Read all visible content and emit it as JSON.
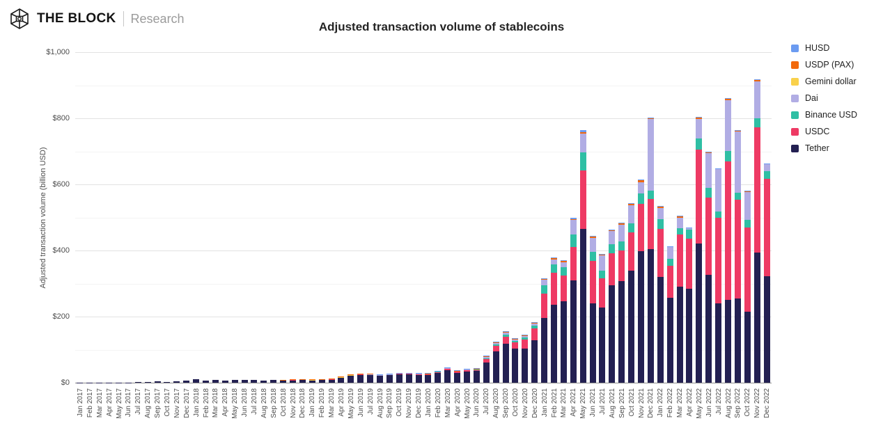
{
  "header": {
    "brand": "THE BLOCK",
    "sub": "Research"
  },
  "chart_data": {
    "type": "bar",
    "stacked": true,
    "title": "Adjusted transaction volume of stablecoins",
    "xlabel": "",
    "ylabel": "Adjusted transaction volume (billion USD)",
    "ylim": [
      0,
      1000
    ],
    "ytick_step": 200,
    "yminor_step": 100,
    "ytick_labels": [
      "$0",
      "$200",
      "$400",
      "$600",
      "$800",
      "$1,000"
    ],
    "grid": true,
    "legend_position": "right",
    "legend_order_top_to_bottom": [
      "HUSD",
      "USDP (PAX)",
      "Gemini dollar",
      "Dai",
      "Binance USD",
      "USDC",
      "Tether"
    ],
    "categories": [
      "Jan 2017",
      "Feb 2017",
      "Mar 2017",
      "Apr 2017",
      "May 2017",
      "Jun 2017",
      "Jul 2017",
      "Aug 2017",
      "Sep 2017",
      "Oct 2017",
      "Nov 2017",
      "Dec 2017",
      "Jan 2018",
      "Feb 2018",
      "Mar 2018",
      "Apr 2018",
      "May 2018",
      "Jun 2018",
      "Jul 2018",
      "Aug 2018",
      "Sep 2018",
      "Oct 2018",
      "Nov 2018",
      "Dec 2018",
      "Jan 2019",
      "Feb 2019",
      "Mar 2019",
      "Apr 2019",
      "May 2019",
      "Jun 2019",
      "Jul 2019",
      "Aug 2019",
      "Sep 2019",
      "Oct 2019",
      "Nov 2019",
      "Dec 2019",
      "Jan 2020",
      "Feb 2020",
      "Mar 2020",
      "Apr 2020",
      "May 2020",
      "Jun 2020",
      "Jul 2020",
      "Aug 2020",
      "Sep 2020",
      "Oct 2020",
      "Nov 2020",
      "Dec 2020",
      "Jan 2021",
      "Feb 2021",
      "Mar 2021",
      "Apr 2021",
      "May 2021",
      "Jun 2021",
      "Jul 2021",
      "Aug 2021",
      "Sep 2021",
      "Oct 2021",
      "Nov 2021",
      "Dec 2021",
      "Jan 2022",
      "Feb 2022",
      "Mar 2022",
      "Apr 2022",
      "May 2022",
      "Jun 2022",
      "Jul 2022",
      "Aug 2022",
      "Sep 2022",
      "Oct 2022",
      "Nov 2022",
      "Dec 2022"
    ],
    "series": [
      {
        "name": "Tether",
        "color": "#232052",
        "values": [
          0.4,
          0.4,
          0.5,
          0.6,
          0.9,
          1,
          1.2,
          2.2,
          3.8,
          2.4,
          3.6,
          6.5,
          10.5,
          7,
          7.5,
          7,
          8.5,
          8,
          7.5,
          7,
          8,
          8.5,
          9,
          9,
          8,
          9,
          10,
          15,
          21,
          24,
          23,
          21,
          23,
          25,
          25,
          24,
          24,
          30,
          38,
          30,
          34,
          35,
          62,
          95,
          118,
          103,
          103,
          128,
          195,
          235,
          246,
          310,
          465,
          239,
          228,
          295,
          308,
          340,
          398,
          404,
          319,
          256,
          291,
          284,
          421,
          326,
          239,
          251,
          254,
          215,
          393,
          323
        ]
      },
      {
        "name": "USDC",
        "color": "#EE3A64",
        "values": [
          0,
          0,
          0,
          0,
          0,
          0,
          0,
          0,
          0,
          0,
          0,
          0,
          0,
          0,
          0,
          0,
          0,
          0,
          0,
          0,
          0,
          0,
          0.5,
          0.8,
          1,
          1,
          1.5,
          2,
          2.5,
          2.5,
          2.5,
          2.5,
          2.5,
          3,
          3.5,
          3.5,
          3,
          4,
          5,
          4,
          5,
          5,
          11,
          16,
          22,
          19,
          28,
          36,
          74,
          98,
          78,
          100,
          178,
          129,
          88,
          97,
          91,
          115,
          144,
          151,
          147,
          98,
          158,
          152,
          284,
          235,
          260,
          419,
          300,
          255,
          380,
          293
        ]
      },
      {
        "name": "Binance USD",
        "color": "#2FBFA4",
        "values": [
          0,
          0,
          0,
          0,
          0,
          0,
          0,
          0,
          0,
          0,
          0,
          0,
          0,
          0,
          0,
          0,
          0,
          0,
          0,
          0,
          0,
          0,
          0,
          0,
          0,
          0,
          0,
          0,
          0,
          0,
          0,
          0,
          0,
          0,
          0,
          0.3,
          0.3,
          0.5,
          1,
          0.8,
          1,
          1,
          1.5,
          4,
          5,
          4,
          5,
          8,
          26,
          25,
          25,
          39,
          53,
          28,
          24,
          28,
          28,
          27,
          31,
          26,
          28,
          21,
          18,
          27,
          35,
          28,
          18,
          31,
          21,
          22,
          27,
          23
        ]
      },
      {
        "name": "Dai",
        "color": "#B1ADE4",
        "values": [
          0,
          0,
          0,
          0,
          0,
          0,
          0,
          0,
          0,
          0,
          0,
          0,
          0,
          0,
          0,
          0,
          0,
          0,
          0,
          0,
          0,
          0,
          0,
          0.2,
          0.1,
          0.1,
          0.2,
          0.3,
          0.4,
          0.4,
          0.4,
          0.4,
          0.4,
          0.5,
          0.5,
          0.5,
          0.5,
          0.8,
          1,
          1,
          1,
          1,
          4,
          5,
          6,
          5,
          6,
          7,
          16,
          15,
          16,
          43,
          58,
          42,
          45,
          39,
          50,
          55,
          34,
          218,
          34,
          35,
          32,
          4,
          58,
          105,
          129,
          153,
          184,
          85,
          111,
          22
        ]
      },
      {
        "name": "Gemini dollar",
        "color": "#F9D14B",
        "values": [
          0,
          0,
          0,
          0,
          0,
          0,
          0,
          0,
          0,
          0,
          0,
          0,
          0,
          0,
          0,
          0,
          0,
          0,
          0,
          0,
          0,
          0.3,
          0.4,
          0.3,
          0.2,
          0.2,
          0.2,
          0.2,
          0.2,
          0.2,
          0.1,
          0.1,
          0.1,
          0.1,
          0.1,
          0.1,
          0.1,
          0.1,
          0.1,
          0.1,
          0.1,
          0.1,
          0.1,
          0.1,
          0.1,
          0.1,
          0.1,
          0.1,
          0,
          0,
          0,
          0,
          0.1,
          0,
          0,
          0,
          0,
          0,
          0,
          0,
          0,
          0,
          0,
          0,
          0,
          0,
          0,
          0,
          0,
          0,
          0,
          0
        ]
      },
      {
        "name": "USDP (PAX)",
        "color": "#F2690C",
        "values": [
          0,
          0,
          0,
          0,
          0,
          0,
          0,
          0,
          0,
          0,
          0,
          0,
          0,
          0,
          0,
          0,
          0,
          0,
          0,
          0,
          0,
          0.4,
          0.8,
          0.8,
          0.5,
          0.5,
          0.5,
          0.5,
          0.5,
          0.5,
          0.5,
          0.5,
          0.5,
          0.5,
          0.5,
          0.5,
          0.5,
          0.6,
          1,
          0.8,
          0.8,
          0.8,
          1.5,
          2,
          2,
          1.5,
          2,
          2,
          2,
          4,
          3,
          3,
          3,
          5,
          3,
          4,
          6,
          5,
          6,
          2,
          5,
          3,
          5,
          2,
          6,
          4,
          2,
          6,
          4,
          3,
          7,
          2
        ]
      },
      {
        "name": "HUSD",
        "color": "#6B9BF1",
        "values": [
          0,
          0,
          0,
          0,
          0,
          0,
          0,
          0,
          0,
          0,
          0,
          0,
          0,
          0,
          0,
          0,
          0,
          0,
          0,
          0,
          0,
          0,
          0,
          0,
          0,
          0,
          0,
          0,
          0,
          0,
          0,
          0.3,
          0.5,
          0.5,
          0.5,
          0.5,
          0.5,
          0.5,
          1,
          0.8,
          1,
          1,
          1.5,
          1.5,
          3,
          1.5,
          1.5,
          1.5,
          2,
          2,
          2,
          5,
          8,
          2,
          1,
          1,
          1,
          1,
          1,
          0.5,
          1,
          0.5,
          0.5,
          0.5,
          1,
          0.5,
          0.3,
          0.5,
          0.3,
          0.3,
          0.5,
          0.3
        ]
      }
    ]
  }
}
